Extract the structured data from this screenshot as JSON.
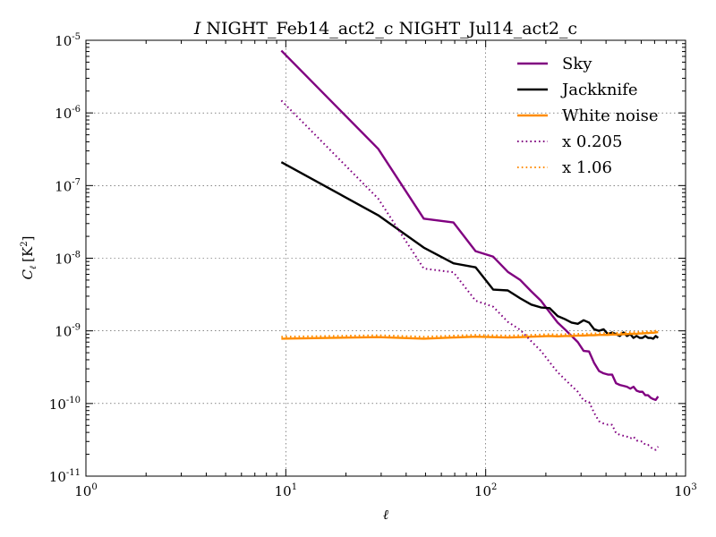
{
  "chart_data": {
    "type": "line",
    "title_italic": "I",
    "title": "NIGHT_Feb14_act2_c NIGHT_Jul14_act2_c",
    "xlabel_sym": "ℓ",
    "ylabel_sym": "C",
    "ylabel_sub": "ℓ",
    "ylabel_unit": "[K",
    "ylabel_unit_exp": "2",
    "ylabel_unit_close": "]",
    "xscale": "log",
    "yscale": "log",
    "xlim": [
      1,
      1000
    ],
    "ylim": [
      1e-11,
      1e-05
    ],
    "grid": true,
    "legend_position": "top-right",
    "x_ticks": [
      {
        "base": "10",
        "exp": "0",
        "value": 1
      },
      {
        "base": "10",
        "exp": "1",
        "value": 10
      },
      {
        "base": "10",
        "exp": "2",
        "value": 100
      },
      {
        "base": "10",
        "exp": "3",
        "value": 1000
      }
    ],
    "y_ticks": [
      {
        "base": "10",
        "exp": "-11",
        "value": 1e-11
      },
      {
        "base": "10",
        "exp": "-10",
        "value": 1e-10
      },
      {
        "base": "10",
        "exp": "-9",
        "value": 1e-09
      },
      {
        "base": "10",
        "exp": "-8",
        "value": 1e-08
      },
      {
        "base": "10",
        "exp": "-7",
        "value": 1e-07
      },
      {
        "base": "10",
        "exp": "-6",
        "value": 1e-06
      },
      {
        "base": "10",
        "exp": "-5",
        "value": 1e-05
      }
    ],
    "series": [
      {
        "name": "Sky",
        "color": "#800080",
        "style": "solid",
        "x": [
          9.5,
          29,
          49,
          69,
          89,
          109,
          129,
          149,
          169,
          189,
          209,
          229,
          249,
          269,
          289,
          309,
          329,
          349,
          369,
          389,
          409,
          429,
          449,
          469,
          489,
          509,
          529,
          549,
          569,
          589,
          609,
          629,
          649,
          669,
          689,
          709,
          729
        ],
        "y": [
          7.2e-06,
          3.2e-07,
          3.5e-08,
          3.1e-08,
          1.25e-08,
          1.05e-08,
          6.5e-09,
          5e-09,
          3.5e-09,
          2.6e-09,
          1.8e-09,
          1.3e-09,
          1.05e-09,
          8.5e-10,
          7e-10,
          5.3e-10,
          5.2e-10,
          3.6e-10,
          2.8e-10,
          2.6e-10,
          2.5e-10,
          2.5e-10,
          1.9e-10,
          1.8e-10,
          1.75e-10,
          1.7e-10,
          1.6e-10,
          1.7e-10,
          1.5e-10,
          1.45e-10,
          1.45e-10,
          1.3e-10,
          1.3e-10,
          1.2e-10,
          1.15e-10,
          1.12e-10,
          1.25e-10
        ]
      },
      {
        "name": "Jackknife",
        "color": "#000000",
        "style": "solid",
        "x": [
          9.5,
          29,
          49,
          69,
          89,
          109,
          129,
          149,
          169,
          189,
          209,
          229,
          249,
          269,
          289,
          309,
          329,
          349,
          369,
          389,
          409,
          429,
          449,
          469,
          489,
          509,
          529,
          549,
          569,
          589,
          609,
          629,
          649,
          669,
          689,
          709,
          729
        ],
        "y": [
          2.1e-07,
          3.9e-08,
          1.4e-08,
          8.5e-09,
          7.5e-09,
          3.7e-09,
          3.6e-09,
          2.8e-09,
          2.3e-09,
          2.1e-09,
          2.05e-09,
          1.6e-09,
          1.45e-09,
          1.3e-09,
          1.25e-09,
          1.4e-09,
          1.3e-09,
          1.05e-09,
          1e-09,
          1.05e-09,
          9e-10,
          9.5e-10,
          9e-10,
          8.5e-10,
          9.5e-10,
          8.5e-10,
          9e-10,
          8e-10,
          8.5e-10,
          8e-10,
          8e-10,
          8.5e-10,
          8e-10,
          8e-10,
          7.8e-10,
          8.5e-10,
          8e-10
        ]
      },
      {
        "name": "White noise",
        "color": "#ff8c00",
        "style": "solid",
        "x": [
          9.5,
          29,
          49,
          69,
          89,
          109,
          129,
          149,
          169,
          189,
          209,
          229,
          249,
          269,
          289,
          309,
          329,
          349,
          369,
          389,
          409,
          429,
          449,
          469,
          489,
          509,
          529,
          549,
          569,
          589,
          609,
          629,
          649,
          669,
          689,
          709,
          729
        ],
        "y": [
          7.8e-10,
          8.2e-10,
          7.8e-10,
          8.1e-10,
          8.3e-10,
          8.2e-10,
          8.1e-10,
          8.2e-10,
          8.3e-10,
          8.4e-10,
          8.5e-10,
          8.4e-10,
          8.5e-10,
          8.5e-10,
          8.6e-10,
          8.6e-10,
          8.7e-10,
          8.7e-10,
          8.8e-10,
          8.8e-10,
          8.8e-10,
          8.9e-10,
          8.9e-10,
          8.9e-10,
          9e-10,
          9e-10,
          9.1e-10,
          9.1e-10,
          9.1e-10,
          9.2e-10,
          9.2e-10,
          9.3e-10,
          9.3e-10,
          9.4e-10,
          9.4e-10,
          9.5e-10,
          9.6e-10
        ]
      },
      {
        "name": "x 0.205",
        "color": "#800080",
        "style": "dotted",
        "x": [
          9.5,
          29,
          49,
          69,
          89,
          109,
          129,
          149,
          169,
          189,
          209,
          229,
          249,
          269,
          289,
          309,
          329,
          349,
          369,
          389,
          409,
          429,
          449,
          469,
          489,
          509,
          529,
          549,
          569,
          589,
          609,
          629,
          649,
          669,
          689,
          709,
          729
        ],
        "y": [
          1.48e-06,
          6.6e-08,
          7.2e-09,
          6.4e-09,
          2.6e-09,
          2.15e-09,
          1.33e-09,
          1.03e-09,
          7.2e-10,
          5.3e-10,
          3.7e-10,
          2.7e-10,
          2.15e-10,
          1.75e-10,
          1.45e-10,
          1.1e-10,
          1.05e-10,
          7.4e-11,
          5.7e-11,
          5.3e-11,
          5.1e-11,
          5.1e-11,
          3.9e-11,
          3.7e-11,
          3.6e-11,
          3.5e-11,
          3.3e-11,
          3.5e-11,
          3.1e-11,
          3e-11,
          3e-11,
          2.7e-11,
          2.7e-11,
          2.5e-11,
          2.35e-11,
          2.3e-11,
          2.55e-11
        ]
      },
      {
        "name": "x 1.06",
        "color": "#ff8c00",
        "style": "dotted",
        "x": [
          9.5,
          29,
          49,
          69,
          89,
          109,
          129,
          149,
          169,
          189,
          209,
          229,
          249,
          269,
          289,
          309,
          329,
          349,
          369,
          389,
          409,
          429,
          449,
          469,
          489,
          509,
          529,
          549,
          569,
          589,
          609,
          629,
          649,
          669,
          689,
          709,
          729
        ],
        "y": [
          8.3e-10,
          8.7e-10,
          8.3e-10,
          8.6e-10,
          8.8e-10,
          8.7e-10,
          8.6e-10,
          8.7e-10,
          8.8e-10,
          8.9e-10,
          9e-10,
          8.9e-10,
          9e-10,
          9e-10,
          9.1e-10,
          9.1e-10,
          9.2e-10,
          9.2e-10,
          9.3e-10,
          9.3e-10,
          9.3e-10,
          9.4e-10,
          9.4e-10,
          9.4e-10,
          9.5e-10,
          9.5e-10,
          9.6e-10,
          9.6e-10,
          9.6e-10,
          9.7e-10,
          9.7e-10,
          9.8e-10,
          9.8e-10,
          9.9e-10,
          9.9e-10,
          1e-09,
          1.02e-09
        ]
      }
    ]
  }
}
